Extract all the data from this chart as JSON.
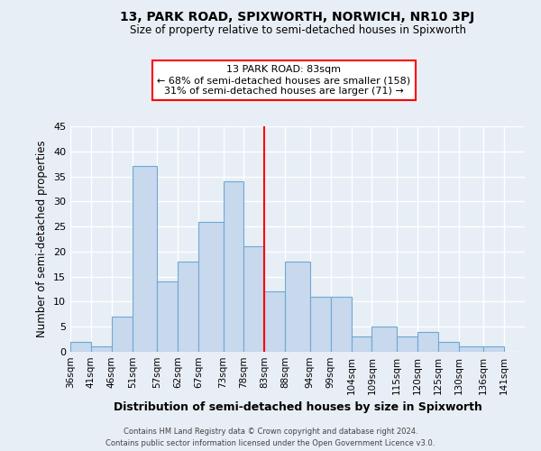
{
  "title": "13, PARK ROAD, SPIXWORTH, NORWICH, NR10 3PJ",
  "subtitle": "Size of property relative to semi-detached houses in Spixworth",
  "xlabel": "Distribution of semi-detached houses by size in Spixworth",
  "ylabel": "Number of semi-detached properties",
  "bin_labels": [
    "36sqm",
    "41sqm",
    "46sqm",
    "51sqm",
    "57sqm",
    "62sqm",
    "67sqm",
    "73sqm",
    "78sqm",
    "83sqm",
    "88sqm",
    "94sqm",
    "99sqm",
    "104sqm",
    "109sqm",
    "115sqm",
    "120sqm",
    "125sqm",
    "130sqm",
    "136sqm",
    "141sqm"
  ],
  "bin_edges": [
    36,
    41,
    46,
    51,
    57,
    62,
    67,
    73,
    78,
    83,
    88,
    94,
    99,
    104,
    109,
    115,
    120,
    125,
    130,
    136,
    141,
    146
  ],
  "counts": [
    2,
    1,
    7,
    37,
    14,
    18,
    26,
    34,
    21,
    12,
    18,
    11,
    11,
    3,
    5,
    3,
    4,
    2,
    1,
    1,
    0
  ],
  "bar_color": "#c8d8ed",
  "bar_edge_color": "#6aaad4",
  "reference_line_x": 83,
  "reference_line_color": "red",
  "annotation_title": "13 PARK ROAD: 83sqm",
  "annotation_line1": "← 68% of semi-detached houses are smaller (158)",
  "annotation_line2": "31% of semi-detached houses are larger (71) →",
  "annotation_box_edgecolor": "red",
  "annotation_bg_color": "white",
  "ylim": [
    0,
    45
  ],
  "yticks": [
    0,
    5,
    10,
    15,
    20,
    25,
    30,
    35,
    40,
    45
  ],
  "footer_line1": "Contains HM Land Registry data © Crown copyright and database right 2024.",
  "footer_line2": "Contains public sector information licensed under the Open Government Licence v3.0.",
  "background_color": "#e8eef5",
  "grid_color": "white"
}
